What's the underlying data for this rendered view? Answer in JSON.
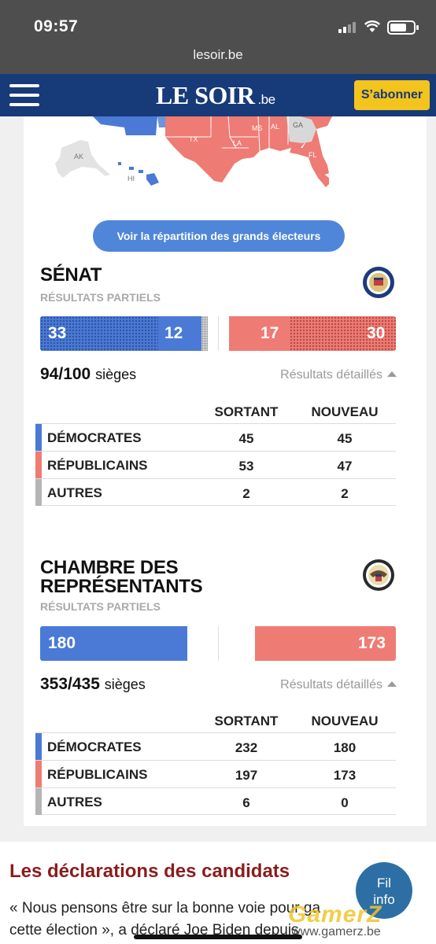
{
  "status_bar": {
    "time": "09:57"
  },
  "browser": {
    "url": "lesoir.be"
  },
  "site_header": {
    "logo": "LE SOIR",
    "logo_suffix": ".be",
    "subscribe_label": "S’abonner"
  },
  "map": {
    "state_labels": [
      "TX",
      "LA",
      "MS",
      "AL",
      "GA",
      "FL",
      "AK",
      "HI"
    ]
  },
  "electors_button": "Voir la répartition des grands électeurs",
  "senate": {
    "title": "SÉNAT",
    "subtitle": "RÉSULTATS PARTIELS",
    "bar": {
      "dem_holdover": "33",
      "dem_new": "12",
      "rep_new": "17",
      "rep_holdover": "30"
    },
    "seats_count": "94/100",
    "seats_label": "sièges",
    "details_link": "Résultats détaillés",
    "table": {
      "col_outgoing": "SORTANT",
      "col_new": "NOUVEAU",
      "rows": [
        {
          "party": "DÉMOCRATES",
          "outgoing": "45",
          "new": "45",
          "color": "#4a7ad6"
        },
        {
          "party": "RÉPUBLICAINS",
          "outgoing": "53",
          "new": "47",
          "color": "#ee7b74"
        },
        {
          "party": "AUTRES",
          "outgoing": "2",
          "new": "2",
          "color": "#b5b5b5"
        }
      ]
    }
  },
  "house": {
    "title_line1": "CHAMBRE DES",
    "title_line2": "REPRÉSENTANTS",
    "subtitle": "RÉSULTATS PARTIELS",
    "bar": {
      "dem": "180",
      "rep": "173"
    },
    "seats_count": "353/435",
    "seats_label": "sièges",
    "details_link": "Résultats détaillés",
    "table": {
      "col_outgoing": "SORTANT",
      "col_new": "NOUVEAU",
      "rows": [
        {
          "party": "DÉMOCRATES",
          "outgoing": "232",
          "new": "180",
          "color": "#4a7ad6"
        },
        {
          "party": "RÉPUBLICAINS",
          "outgoing": "197",
          "new": "173",
          "color": "#ee7b74"
        },
        {
          "party": "AUTRES",
          "outgoing": "6",
          "new": "0",
          "color": "#b5b5b5"
        }
      ]
    }
  },
  "news": {
    "heading": "Les déclarations des candidats",
    "quote_line1": "« Nous pensons être sur la bonne voie pour ga",
    "quote_line2": "cette élection », a déclaré Joe Biden depuis"
  },
  "fil_info": {
    "line1": "Fil",
    "line2": "info"
  },
  "watermark": {
    "text": "GamerZ",
    "url": "www.gamerz.be"
  }
}
